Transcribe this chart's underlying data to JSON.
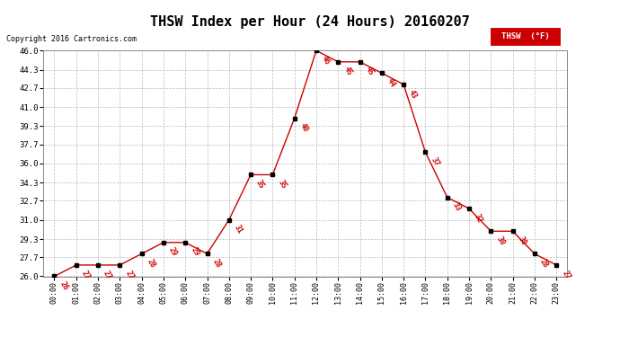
{
  "title": "THSW Index per Hour (24 Hours) 20160207",
  "copyright": "Copyright 2016 Cartronics.com",
  "legend_label": "THSW  (°F)",
  "hours": [
    "00:00",
    "01:00",
    "02:00",
    "03:00",
    "04:00",
    "05:00",
    "06:00",
    "07:00",
    "08:00",
    "09:00",
    "10:00",
    "11:00",
    "12:00",
    "13:00",
    "14:00",
    "15:00",
    "16:00",
    "17:00",
    "18:00",
    "19:00",
    "20:00",
    "21:00",
    "22:00",
    "23:00"
  ],
  "data_points": [
    {
      "hour": 0,
      "val": 26
    },
    {
      "hour": 1,
      "val": 27
    },
    {
      "hour": 2,
      "val": 27
    },
    {
      "hour": 3,
      "val": 27
    },
    {
      "hour": 4,
      "val": 28
    },
    {
      "hour": 5,
      "val": 29
    },
    {
      "hour": 6,
      "val": 29
    },
    {
      "hour": 7,
      "val": 28
    },
    {
      "hour": 8,
      "val": 31
    },
    {
      "hour": 9,
      "val": 35
    },
    {
      "hour": 10,
      "val": 35
    },
    {
      "hour": 11,
      "val": 40
    },
    {
      "hour": 12,
      "val": 46
    },
    {
      "hour": 13,
      "val": 45
    },
    {
      "hour": 14,
      "val": 45
    },
    {
      "hour": 15,
      "val": 44
    },
    {
      "hour": 16,
      "val": 43
    },
    {
      "hour": 17,
      "val": 37
    },
    {
      "hour": 18,
      "val": 33
    },
    {
      "hour": 19,
      "val": 32
    },
    {
      "hour": 20,
      "val": 30
    },
    {
      "hour": 21,
      "val": 30
    },
    {
      "hour": 22,
      "val": 28
    },
    {
      "hour": 23,
      "val": 27
    }
  ],
  "ylim": [
    26.0,
    46.0
  ],
  "yticks": [
    26.0,
    27.7,
    29.3,
    31.0,
    32.7,
    34.3,
    36.0,
    37.7,
    39.3,
    41.0,
    42.7,
    44.3,
    46.0
  ],
  "line_color": "#cc0000",
  "marker_color": "#000000",
  "bg_color": "#ffffff",
  "grid_color": "#bbbbbb",
  "title_fontsize": 11,
  "legend_bg": "#cc0000",
  "legend_text_color": "#ffffff"
}
